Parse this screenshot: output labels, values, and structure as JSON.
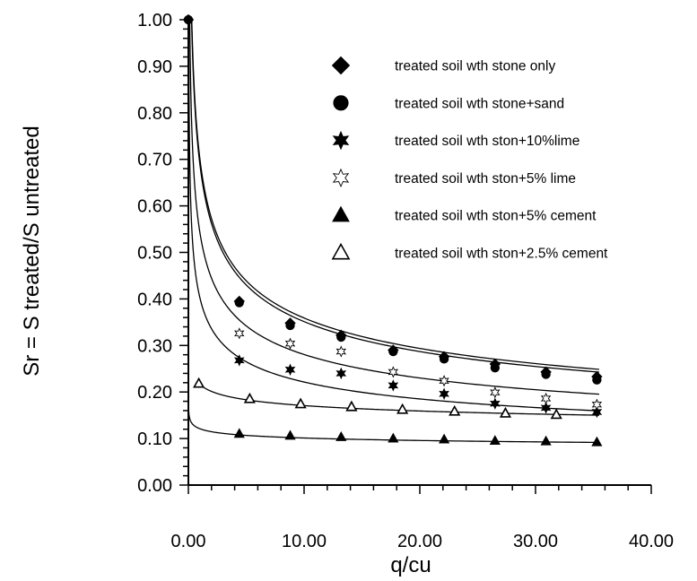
{
  "chart_data": {
    "type": "scatter",
    "xlabel": "q/cu",
    "ylabel": "Sr = S treated/S untreated",
    "xlim": [
      0,
      40
    ],
    "ylim": [
      0,
      1
    ],
    "x_ticks": [
      "0.00",
      "10.00",
      "20.00",
      "30.00",
      "40.00"
    ],
    "y_ticks": [
      "0.00",
      "0.10",
      "0.20",
      "0.30",
      "0.40",
      "0.50",
      "0.60",
      "0.70",
      "0.80",
      "0.90",
      "1.00"
    ],
    "grid": false,
    "legend_position": "top-right",
    "series": [
      {
        "name": "treated soil wth stone only",
        "marker": "diamond-filled",
        "x": [
          0,
          4.4,
          8.8,
          13.2,
          17.7,
          22.1,
          26.5,
          30.9,
          35.3
        ],
        "y": [
          1.0,
          0.395,
          0.348,
          0.322,
          0.29,
          0.276,
          0.26,
          0.243,
          0.233
        ],
        "fit": {
          "a": 0.7,
          "b": -0.29,
          "x0": 0.02,
          "x1": 35.5
        }
      },
      {
        "name": "treated soil wth stone+sand",
        "marker": "circle-filled",
        "x": [
          0,
          4.4,
          8.8,
          13.2,
          17.7,
          22.1,
          26.5,
          30.9,
          35.3
        ],
        "y": [
          1.0,
          0.392,
          0.343,
          0.318,
          0.287,
          0.271,
          0.252,
          0.238,
          0.226
        ],
        "fit": {
          "a": 0.688,
          "b": -0.292,
          "x0": 0.02,
          "x1": 35.5
        }
      },
      {
        "name": "treated soil wth ston+10%lime",
        "marker": "star6-filled",
        "x": [
          4.4,
          8.8,
          13.2,
          17.7,
          22.1,
          26.5,
          30.9,
          35.3
        ],
        "y": [
          0.268,
          0.248,
          0.24,
          0.214,
          0.196,
          0.175,
          0.166,
          0.157
        ],
        "fit": {
          "a": 0.402,
          "b": -0.259,
          "x0": 0.02,
          "x1": 35.5
        }
      },
      {
        "name": "treated soil wth ston+5% lime",
        "marker": "star6-open",
        "x": [
          4.4,
          8.8,
          13.2,
          17.7,
          22.1,
          26.5,
          30.9,
          35.3
        ],
        "y": [
          0.326,
          0.304,
          0.287,
          0.243,
          0.224,
          0.199,
          0.186,
          0.173
        ],
        "fit": {
          "a": 0.542,
          "b": -0.286,
          "x0": 0.02,
          "x1": 35.5
        }
      },
      {
        "name": "treated soil wth ston+5% cement",
        "marker": "triangle-filled",
        "x": [
          4.4,
          8.8,
          13.2,
          17.7,
          22.1,
          26.5,
          30.9,
          35.3,
          5.3,
          9.7,
          14.1,
          18.5,
          23.0,
          27.4,
          31.8
        ],
        "y": [
          0.11,
          0.106,
          0.103,
          0.1,
          0.098,
          0.095,
          0.094,
          0.092,
          0.185,
          0.174,
          0.167,
          0.162,
          0.158,
          0.154,
          0.151
        ],
        "fit": {
          "a": 0.121,
          "b": -0.078,
          "x0": 0.02,
          "x1": 35.5
        }
      },
      {
        "name": "treated soil wth ston+2.5% cement",
        "marker": "triangle-open",
        "x": [
          0.9,
          5.3,
          9.7,
          14.1,
          18.5,
          23.0,
          27.4,
          31.8
        ],
        "y": [
          0.218,
          0.185,
          0.174,
          0.168,
          0.162,
          0.158,
          0.154,
          0.151
        ],
        "fit": {
          "a": 0.216,
          "b": -0.102,
          "x0": 0.8,
          "x1": 35.5
        }
      }
    ]
  }
}
